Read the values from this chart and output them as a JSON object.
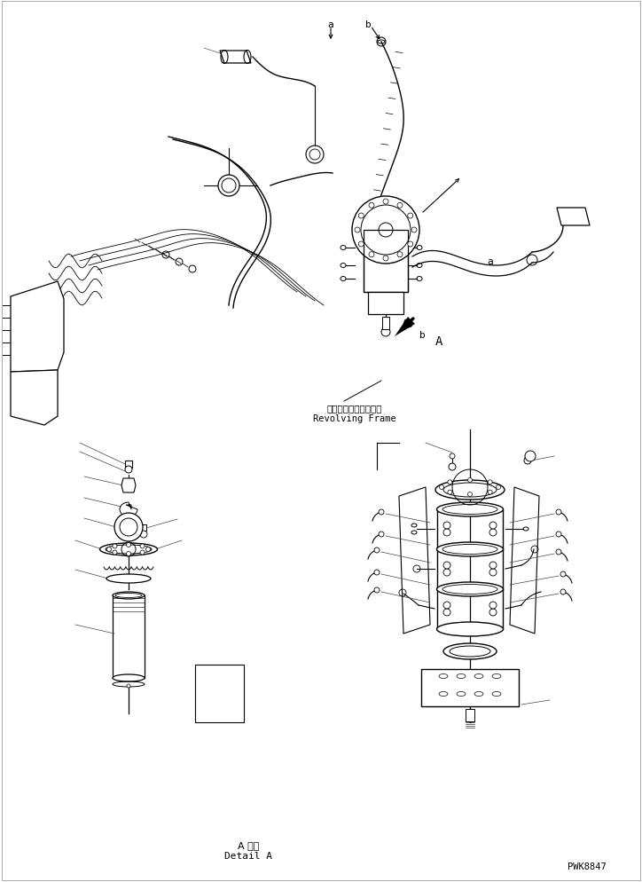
{
  "background_color": "#ffffff",
  "line_color": "#000000",
  "label_revolving_ja": "レボルビングフレーム",
  "label_revolving_en": "Revolving Frame",
  "label_detail_ja": "A 詳細",
  "label_detail_en": "Detail A",
  "label_pwk": "PWK8847",
  "label_a1": "a",
  "label_b1": "b",
  "label_a2": "a",
  "label_b2": "b",
  "label_A": "A",
  "figsize": [
    7.24,
    9.95
  ],
  "dpi": 100
}
